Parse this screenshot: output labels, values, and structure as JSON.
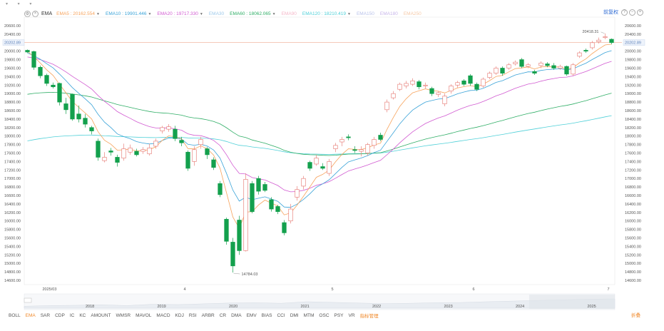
{
  "legend": {
    "indicator": "EMA",
    "items": [
      {
        "label": "EMA5 : 20162.554",
        "color": "#f7a35c",
        "arrow": true
      },
      {
        "label": "EMA10 : 19901.446",
        "color": "#3aa3d8",
        "arrow": true
      },
      {
        "label": "EMA20 : 19717.330",
        "color": "#d15ad1",
        "arrow": true
      },
      {
        "label": "EMA30",
        "color": "#9ec9ea",
        "arrow": false
      },
      {
        "label": "EMA60 : 18062.065",
        "color": "#2fae66",
        "arrow": true
      },
      {
        "label": "EMA90",
        "color": "#f5b7c9",
        "arrow": false
      },
      {
        "label": "EMA120 : 18210.419",
        "color": "#4fd0d8",
        "arrow": true
      },
      {
        "label": "EMA150",
        "color": "#b9c2ea",
        "arrow": false
      },
      {
        "label": "EMA180",
        "color": "#c8b6ea",
        "arrow": false
      },
      {
        "label": "EMA250",
        "color": "#f6c9a7",
        "arrow": false
      }
    ],
    "right_link": "前复权"
  },
  "y_axis": {
    "ticks": [
      "20600.00",
      "20400.00",
      "20200.00",
      "20000.00",
      "19800.00",
      "19600.00",
      "19400.00",
      "19200.00",
      "19000.00",
      "18800.00",
      "18600.00",
      "18400.00",
      "18200.00",
      "18000.00",
      "17800.00",
      "17600.00",
      "17400.00",
      "17200.00",
      "17000.00",
      "16800.00",
      "16600.00",
      "16400.00",
      "16200.00",
      "16000.00",
      "15800.00",
      "15600.00",
      "15400.00",
      "15200.00",
      "15000.00",
      "14800.00",
      "14600.00"
    ],
    "current_price": "20202.89"
  },
  "x_axis": {
    "ticks": [
      {
        "label": "2025/03",
        "index": 3
      },
      {
        "label": "4",
        "index": 25
      },
      {
        "label": "5",
        "index": 48
      },
      {
        "label": "6",
        "index": 70
      },
      {
        "label": "7",
        "index": 91
      }
    ]
  },
  "annotations": {
    "high": "20418.31",
    "low": "14784.03"
  },
  "navigator": {
    "years": [
      "2018",
      "2019",
      "2020",
      "2021",
      "2022",
      "2023",
      "2024",
      "2025"
    ]
  },
  "indicators_bar": {
    "items": [
      "BOLL",
      "EMA",
      "SAR",
      "CDP",
      "IC",
      "KC",
      "AMOUNT",
      "WMSR",
      "MAVOL",
      "MACD",
      "KDJ",
      "RSI",
      "ARBR",
      "CR",
      "DMA",
      "EMV",
      "BIAS",
      "CCI",
      "DMI",
      "MTM",
      "OSC",
      "PSY",
      "VR",
      "指标管理"
    ],
    "active": "EMA",
    "right": "折叠"
  },
  "colors": {
    "up": "#e8837d",
    "down": "#13a04d",
    "price_line": "#f2b7a4"
  },
  "chart_data": {
    "type": "candlestick",
    "ylim": [
      14600,
      20600
    ],
    "up_color": "#e8837d",
    "down_color": "#13a04d",
    "candles": [
      [
        20020,
        19980,
        20040,
        19960
      ],
      [
        19990,
        19620,
        20010,
        19560
      ],
      [
        19620,
        19420,
        19660,
        19360
      ],
      [
        19430,
        19240,
        19470,
        19180
      ],
      [
        19200,
        19160,
        19260,
        19120
      ],
      [
        19240,
        18800,
        19260,
        18720
      ],
      [
        18760,
        18620,
        18900,
        18520
      ],
      [
        18980,
        18400,
        19000,
        18360
      ],
      [
        18520,
        18400,
        18720,
        18320
      ],
      [
        18420,
        18280,
        18520,
        18200
      ],
      [
        18200,
        18120,
        18240,
        18040
      ],
      [
        17880,
        17500,
        17940,
        17420
      ],
      [
        17420,
        17500,
        17620,
        17380
      ],
      [
        17650,
        17620,
        17720,
        17540
      ],
      [
        17500,
        17380,
        17560,
        17280
      ],
      [
        17480,
        17700,
        17820,
        17420
      ],
      [
        17620,
        17720,
        17800,
        17560
      ],
      [
        17640,
        17560,
        17700,
        17520
      ],
      [
        17640,
        17680,
        17740,
        17580
      ],
      [
        17580,
        17720,
        17820,
        17540
      ],
      [
        17760,
        17880,
        17940,
        17700
      ],
      [
        18120,
        18200,
        18240,
        18060
      ],
      [
        18160,
        18220,
        18280,
        18100
      ],
      [
        18160,
        17940,
        18240,
        17880
      ],
      [
        17900,
        17840,
        17980,
        17760
      ],
      [
        17620,
        17240,
        17660,
        17180
      ],
      [
        17400,
        17680,
        17760,
        17300
      ],
      [
        17800,
        17920,
        17980,
        17700
      ],
      [
        17700,
        17560,
        17740,
        17460
      ],
      [
        17440,
        17260,
        17500,
        17200
      ],
      [
        16880,
        16620,
        16940,
        16560
      ],
      [
        16040,
        15520,
        16080,
        15440
      ],
      [
        15500,
        14940,
        15600,
        14784
      ],
      [
        16020,
        15300,
        16120,
        15200
      ],
      [
        15300,
        16980,
        17120,
        15280
      ],
      [
        16880,
        16220,
        16940,
        16180
      ],
      [
        17000,
        16700,
        17060,
        16620
      ],
      [
        16860,
        16720,
        16920,
        16680
      ],
      [
        16500,
        16280,
        16560,
        16220
      ],
      [
        16340,
        16220,
        16380,
        16160
      ],
      [
        15960,
        15720,
        16020,
        15660
      ],
      [
        16000,
        16280,
        16400,
        15940
      ],
      [
        16560,
        16740,
        16820,
        16480
      ],
      [
        16820,
        17000,
        17060,
        16740
      ],
      [
        17380,
        17240,
        17420,
        17180
      ],
      [
        17340,
        17480,
        17560,
        17300
      ],
      [
        17280,
        17240,
        17360,
        17200
      ],
      [
        17120,
        17400,
        17460,
        17060
      ],
      [
        17700,
        17780,
        17840,
        17620
      ],
      [
        17860,
        17920,
        17980,
        17760
      ],
      [
        17980,
        17960,
        18040,
        17900
      ],
      [
        17680,
        17660,
        17760,
        17600
      ],
      [
        17640,
        17680,
        17760,
        17520
      ],
      [
        17600,
        17800,
        17840,
        17540
      ],
      [
        17780,
        17920,
        17980,
        17700
      ],
      [
        18020,
        17920,
        18080,
        17880
      ],
      [
        18620,
        18800,
        18860,
        18560
      ],
      [
        18900,
        19000,
        19060,
        18860
      ],
      [
        19100,
        19220,
        19260,
        19060
      ],
      [
        19180,
        19240,
        19300,
        19120
      ],
      [
        19220,
        19300,
        19360,
        19180
      ],
      [
        19280,
        19160,
        19320,
        19100
      ],
      [
        19180,
        19200,
        19260,
        19120
      ],
      [
        19120,
        19000,
        19160,
        18940
      ],
      [
        18980,
        19020,
        19060,
        18920
      ],
      [
        18760,
        18940,
        19000,
        18700
      ],
      [
        19060,
        19180,
        19220,
        19000
      ],
      [
        19200,
        19260,
        19300,
        19140
      ],
      [
        19300,
        19220,
        19340,
        19180
      ],
      [
        19420,
        19240,
        19460,
        19180
      ],
      [
        19220,
        19100,
        19260,
        19060
      ],
      [
        19180,
        19340,
        19380,
        19140
      ],
      [
        19380,
        19480,
        19520,
        19340
      ],
      [
        19480,
        19600,
        19640,
        19440
      ],
      [
        19600,
        19480,
        19640,
        19420
      ],
      [
        19600,
        19680,
        19720,
        19560
      ],
      [
        19700,
        19740,
        19780,
        19660
      ],
      [
        19800,
        19640,
        19840,
        19600
      ],
      [
        19640,
        19680,
        19720,
        19600
      ],
      [
        19520,
        19480,
        19560,
        19440
      ],
      [
        19660,
        19720,
        19760,
        19600
      ],
      [
        19700,
        19660,
        19740,
        19620
      ],
      [
        19660,
        19600,
        19720,
        19560
      ],
      [
        19600,
        19640,
        19680,
        19560
      ],
      [
        19640,
        19460,
        19660,
        19420
      ],
      [
        19460,
        19680,
        19720,
        19420
      ],
      [
        19880,
        19960,
        20000,
        19840
      ],
      [
        20020,
        20000,
        20060,
        19960
      ],
      [
        20080,
        20200,
        20240,
        20040
      ],
      [
        20220,
        20260,
        20320,
        20180
      ],
      [
        20320,
        20340,
        20418,
        20280
      ],
      [
        20280,
        20202,
        20300,
        20160
      ]
    ]
  }
}
